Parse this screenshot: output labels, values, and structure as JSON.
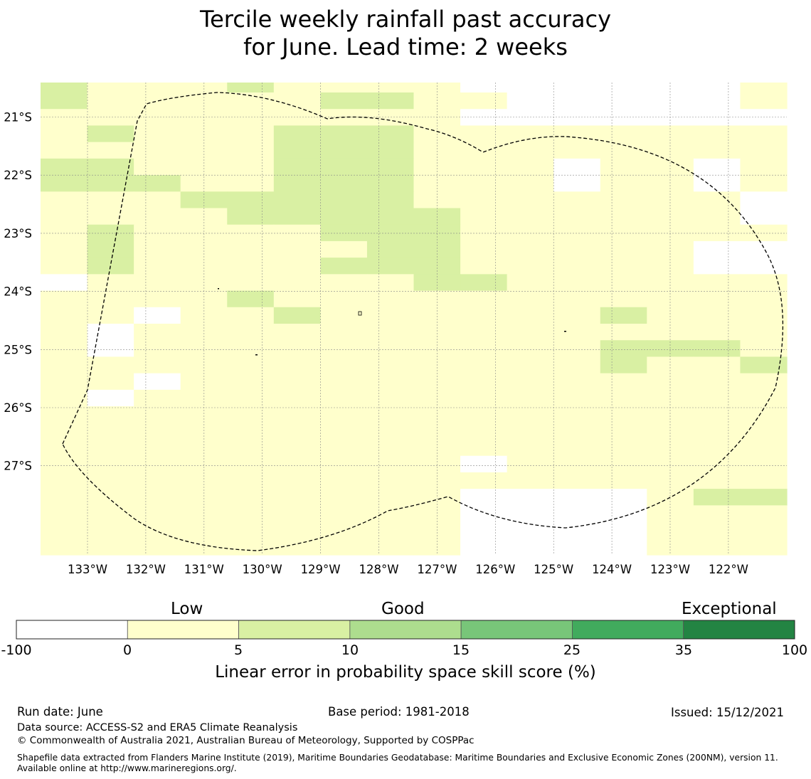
{
  "title": {
    "line1": "Tercile weekly rainfall past accuracy",
    "line2": "for June. Lead time: 2 weeks"
  },
  "map": {
    "lon_labels": [
      "133°W",
      "132°W",
      "131°W",
      "130°W",
      "129°W",
      "128°W",
      "127°W",
      "126°W",
      "125°W",
      "124°W",
      "123°W",
      "122°W"
    ],
    "lat_labels": [
      "21°S",
      "22°S",
      "23°S",
      "24°S",
      "25°S",
      "26°S",
      "27°S"
    ],
    "colors": {
      "missing": "#ffffff",
      "c0_5": "#ffffcc",
      "c5_10": "#d9f0a3",
      "c10_15": "#addd8e",
      "c15_25": "#78c679",
      "c25_35": "#41ab5d",
      "c35_100": "#238443"
    },
    "grid_legend": "0 = missing/white, 1 = 0–5 %, 2 = 5–10 %; rows north to south, columns west to east",
    "grid": [
      "2111211110000001",
      "2111112211000001",
      "1111111110000000",
      "1211122211111111",
      "1111122211111111",
      "2211122211101101",
      "2221122211101101",
      "1112222211111110",
      "1111222221111110",
      "1211112221111111",
      "1211111221111100",
      "1211112221111100",
      "0111111122111111",
      "1111211111111111",
      "1101121111112111",
      "1011111111111111",
      "1011111111112221",
      "1111111111112112",
      "1101111111111111",
      "1011111111111111",
      "1111111111111111",
      "1111111111111111",
      "1111111111111111",
      "1111111110111111",
      "1111111111111111",
      "1111111110000122",
      "1111111110000111",
      "1111111110000111",
      "1111111110000111"
    ]
  },
  "colorbar": {
    "categories": [
      "Low",
      "Good",
      "Exceptional"
    ],
    "ticks": [
      "-100",
      "0",
      "5",
      "10",
      "15",
      "25",
      "35",
      "100"
    ],
    "label": "Linear error in probability space skill score (%)"
  },
  "footer": {
    "run_date": "Run date: June",
    "base_period": "Base period: 1981-2018",
    "issued": "Issued: 15/12/2021",
    "data_source": "Data source: ACCESS-S2 and ERA5 Climate Reanalysis",
    "copyright": "© Commonwealth of Australia 2021, Australian Bureau of Meteorology, Supported by COSPPac",
    "shapefile": "Shapefile data extracted from Flanders Marine Institute (2019), Maritime Boundaries Geodatabase: Maritime Boundaries and Exclusive Economic Zones (200NM), version 11. Available online at http://www.marineregions.org/."
  }
}
